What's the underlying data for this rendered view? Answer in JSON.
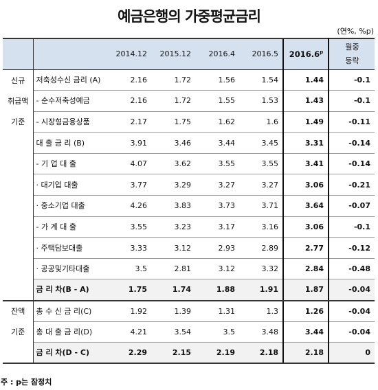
{
  "title": "예금은행의 가중평균금리",
  "unit": "(연%, %p)",
  "columns": [
    "2014.12",
    "2015.12",
    "2016.4",
    "2016.5"
  ],
  "new_col": {
    "label": "2016.6",
    "sup": "p"
  },
  "change_col": [
    "월중",
    "등락"
  ],
  "group_new": [
    "신규",
    "취급액",
    "기준"
  ],
  "group_bal": [
    "잔액",
    "기준"
  ],
  "rows_new": [
    {
      "item": "저축성수신    금리 (A)",
      "values": [
        "2.16",
        "1.72",
        "1.56",
        "1.54"
      ],
      "new": "1.44",
      "chg": "-0.1"
    },
    {
      "item": "- 순수저축성예금",
      "values": [
        "2.16",
        "1.72",
        "1.55",
        "1.53"
      ],
      "new": "1.43",
      "chg": "-0.1"
    },
    {
      "item": "- 시장형금융상품",
      "values": [
        "2.17",
        "1.75",
        "1.62",
        "1.6"
      ],
      "new": "1.49",
      "chg": "-0.11"
    },
    {
      "item": "대 출 금 리 (B)",
      "values": [
        "3.91",
        "3.46",
        "3.44",
        "3.45"
      ],
      "new": "3.31",
      "chg": "-0.14"
    },
    {
      "item": "- 기 업 대 출",
      "values": [
        "4.07",
        "3.62",
        "3.55",
        "3.55"
      ],
      "new": "3.41",
      "chg": "-0.14"
    },
    {
      "item": "· 대기업 대출",
      "values": [
        "3.77",
        "3.29",
        "3.27",
        "3.27"
      ],
      "new": "3.06",
      "chg": "-0.21"
    },
    {
      "item": "· 중소기업 대출",
      "values": [
        "4.26",
        "3.83",
        "3.73",
        "3.71"
      ],
      "new": "3.64",
      "chg": "-0.07"
    },
    {
      "item": "- 가 계 대 출",
      "values": [
        "3.55",
        "3.23",
        "3.17",
        "3.16"
      ],
      "new": "3.06",
      "chg": "-0.1"
    },
    {
      "item": "· 주택담보대출",
      "values": [
        "3.33",
        "3.12",
        "2.93",
        "2.89"
      ],
      "new": "2.77",
      "chg": "-0.12"
    },
    {
      "item": "· 공공및기타대출",
      "values": [
        "3.5",
        "2.81",
        "3.12",
        "3.32"
      ],
      "new": "2.84",
      "chg": "-0.48"
    },
    {
      "item": "금 리 차(B - A)",
      "values": [
        "1.75",
        "1.74",
        "1.88",
        "1.91"
      ],
      "new": "1.87",
      "chg": "-0.04"
    }
  ],
  "rows_bal": [
    {
      "item": "총 수 신 금 리(C)",
      "values": [
        "1.92",
        "1.39",
        "1.31",
        "1.3"
      ],
      "new": "1.26",
      "chg": "-0.04"
    },
    {
      "item": "총 대 출 금 리(D)",
      "values": [
        "4.21",
        "3.54",
        "3.5",
        "3.48"
      ],
      "new": "3.44",
      "chg": "-0.04"
    },
    {
      "item": "금 리 차(D - C)",
      "values": [
        "2.29",
        "2.15",
        "2.19",
        "2.18"
      ],
      "new": "2.18",
      "chg": "0"
    }
  ],
  "note": "주 : p는 잠정치"
}
